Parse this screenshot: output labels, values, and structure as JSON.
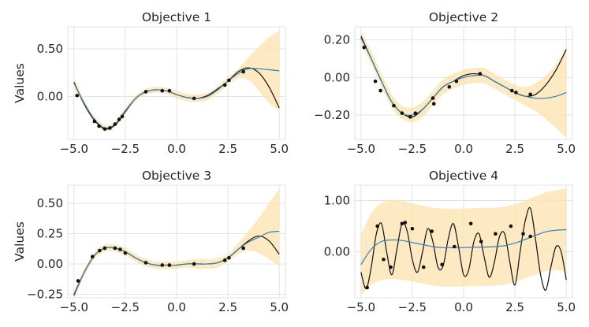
{
  "colors": {
    "band": "#fde3b1",
    "mean": "#3b7fb3",
    "truth": "#111111",
    "point": "#111111"
  },
  "chart_data": [
    {
      "type": "line",
      "title": "Objective 1",
      "xlabel": "",
      "ylabel": "Values",
      "xlim": [
        -5.3,
        5.3
      ],
      "ylim": [
        -0.45,
        0.73
      ],
      "xticks": [
        -5,
        -2.5,
        0,
        2.5,
        5
      ],
      "xtick_labels": [
        "−5.0",
        "−2.5",
        "0.0",
        "2.5",
        "5.0"
      ],
      "yticks": [
        0,
        0.5
      ],
      "ytick_labels": [
        "0.00",
        "0.50"
      ],
      "grid": true,
      "series": [
        {
          "name": "true objective",
          "x": [
            -5.0,
            -4.5,
            -4.0,
            -3.5,
            -3.0,
            -2.5,
            -2.0,
            -1.5,
            -1.0,
            -0.5,
            0.0,
            0.5,
            1.0,
            1.5,
            2.0,
            2.5,
            3.0,
            3.5,
            4.0,
            4.5,
            5.0
          ],
          "y": [
            0.15,
            -0.08,
            -0.25,
            -0.34,
            -0.3,
            -0.16,
            -0.02,
            0.05,
            0.07,
            0.06,
            0.02,
            -0.01,
            -0.02,
            0.01,
            0.08,
            0.16,
            0.26,
            0.3,
            0.25,
            0.1,
            -0.12
          ]
        },
        {
          "name": "posterior mean",
          "x": [
            -5.0,
            -4.5,
            -4.0,
            -3.5,
            -3.0,
            -2.5,
            -2.0,
            -1.5,
            -1.0,
            -0.5,
            0.0,
            0.5,
            1.0,
            1.5,
            2.0,
            2.5,
            3.0,
            3.5,
            4.0,
            4.5,
            5.0
          ],
          "y": [
            0.14,
            -0.07,
            -0.24,
            -0.33,
            -0.29,
            -0.15,
            -0.02,
            0.05,
            0.07,
            0.06,
            0.02,
            -0.01,
            -0.02,
            0.0,
            0.07,
            0.16,
            0.24,
            0.29,
            0.29,
            0.28,
            0.27
          ]
        },
        {
          "name": "confidence band",
          "x": [
            -5.0,
            -4.5,
            -4.0,
            -3.5,
            -3.0,
            -2.5,
            -2.0,
            -1.5,
            -1.0,
            -0.5,
            0.0,
            0.5,
            1.0,
            1.5,
            2.0,
            2.5,
            3.0,
            3.5,
            4.0,
            4.5,
            5.0
          ],
          "lower": [
            0.08,
            -0.1,
            -0.27,
            -0.36,
            -0.32,
            -0.18,
            -0.05,
            0.02,
            0.04,
            0.03,
            -0.02,
            -0.05,
            -0.06,
            -0.04,
            0.03,
            0.12,
            0.19,
            0.17,
            0.06,
            -0.07,
            -0.15
          ],
          "upper": [
            0.2,
            -0.04,
            -0.21,
            -0.3,
            -0.26,
            -0.12,
            0.01,
            0.08,
            0.1,
            0.09,
            0.06,
            0.03,
            0.02,
            0.04,
            0.11,
            0.2,
            0.29,
            0.41,
            0.52,
            0.62,
            0.69
          ]
        }
      ],
      "observations": {
        "x": [
          -4.85,
          -4.0,
          -3.78,
          -3.5,
          -3.25,
          -3.0,
          -2.8,
          -2.65,
          -1.5,
          -0.7,
          -0.35,
          0.85,
          2.35,
          2.55,
          3.25
        ],
        "y": [
          0.01,
          -0.26,
          -0.31,
          -0.34,
          -0.33,
          -0.29,
          -0.24,
          -0.21,
          0.05,
          0.06,
          0.06,
          -0.02,
          0.12,
          0.17,
          0.26
        ]
      }
    },
    {
      "type": "line",
      "title": "Objective 2",
      "xlabel": "",
      "ylabel": "",
      "xlim": [
        -5.3,
        5.3
      ],
      "ylim": [
        -0.33,
        0.27
      ],
      "xticks": [
        -5,
        -2.5,
        0,
        2.5,
        5
      ],
      "xtick_labels": [
        "−5.0",
        "−2.5",
        "0.0",
        "2.5",
        "5.0"
      ],
      "yticks": [
        -0.2,
        0,
        0.2
      ],
      "ytick_labels": [
        "−0.20",
        "0.00",
        "0.20"
      ],
      "grid": true,
      "series": [
        {
          "name": "true objective",
          "x": [
            -5.0,
            -4.5,
            -4.0,
            -3.5,
            -3.0,
            -2.5,
            -2.0,
            -1.5,
            -1.0,
            -0.5,
            0.0,
            0.5,
            1.0,
            1.5,
            2.0,
            2.5,
            3.0,
            3.5,
            4.0,
            4.5,
            5.0
          ],
          "y": [
            0.22,
            0.1,
            -0.02,
            -0.13,
            -0.19,
            -0.21,
            -0.17,
            -0.11,
            -0.05,
            -0.02,
            0.01,
            0.02,
            0.01,
            -0.02,
            -0.05,
            -0.08,
            -0.1,
            -0.09,
            -0.04,
            0.04,
            0.15
          ]
        },
        {
          "name": "posterior mean",
          "x": [
            -5.0,
            -4.5,
            -4.0,
            -3.5,
            -3.0,
            -2.5,
            -2.0,
            -1.5,
            -1.0,
            -0.5,
            0.0,
            0.5,
            1.0,
            1.5,
            2.0,
            2.5,
            3.0,
            3.5,
            4.0,
            4.5,
            5.0
          ],
          "y": [
            0.21,
            0.1,
            -0.02,
            -0.13,
            -0.19,
            -0.2,
            -0.17,
            -0.11,
            -0.05,
            -0.02,
            0.0,
            0.01,
            0.01,
            -0.02,
            -0.05,
            -0.08,
            -0.1,
            -0.11,
            -0.11,
            -0.1,
            -0.08
          ]
        },
        {
          "name": "confidence band",
          "x": [
            -5.0,
            -4.5,
            -4.0,
            -3.5,
            -3.0,
            -2.5,
            -2.0,
            -1.5,
            -1.0,
            -0.5,
            0.0,
            0.5,
            1.0,
            1.5,
            2.0,
            2.5,
            3.0,
            3.5,
            4.0,
            4.5,
            5.0
          ],
          "lower": [
            0.18,
            0.07,
            -0.05,
            -0.16,
            -0.22,
            -0.24,
            -0.21,
            -0.15,
            -0.09,
            -0.06,
            -0.04,
            -0.03,
            -0.03,
            -0.06,
            -0.09,
            -0.12,
            -0.15,
            -0.18,
            -0.22,
            -0.27,
            -0.32
          ],
          "upper": [
            0.25,
            0.14,
            0.02,
            -0.09,
            -0.15,
            -0.16,
            -0.13,
            -0.07,
            -0.01,
            0.02,
            0.04,
            0.05,
            0.05,
            0.02,
            -0.01,
            -0.04,
            -0.05,
            -0.03,
            0.01,
            0.07,
            0.16
          ]
        }
      ],
      "observations": {
        "x": [
          -4.85,
          -4.3,
          -4.05,
          -3.4,
          -3.0,
          -2.6,
          -2.35,
          -1.5,
          -1.45,
          -0.7,
          -0.35,
          0.8,
          2.35,
          2.55,
          3.25
        ],
        "y": [
          0.16,
          -0.02,
          -0.07,
          -0.15,
          -0.19,
          -0.21,
          -0.19,
          -0.11,
          -0.14,
          -0.05,
          -0.02,
          0.02,
          -0.07,
          -0.08,
          -0.09
        ]
      }
    },
    {
      "type": "line",
      "title": "Objective 3",
      "xlabel": "",
      "ylabel": "Values",
      "xlim": [
        -5.3,
        5.3
      ],
      "ylim": [
        -0.28,
        0.65
      ],
      "xticks": [
        -5,
        -2.5,
        0,
        2.5,
        5
      ],
      "xtick_labels": [
        "−5.0",
        "−2.5",
        "0.0",
        "2.5",
        "5.0"
      ],
      "yticks": [
        -0.25,
        0,
        0.25,
        0.5
      ],
      "ytick_labels": [
        "−0.25",
        "0.00",
        "0.25",
        "0.50"
      ],
      "grid": true,
      "series": [
        {
          "name": "true objective",
          "x": [
            -5.0,
            -4.5,
            -4.0,
            -3.5,
            -3.0,
            -2.5,
            -2.0,
            -1.5,
            -1.0,
            -0.5,
            0.0,
            0.5,
            1.0,
            1.5,
            2.0,
            2.5,
            3.0,
            3.5,
            4.0,
            4.5,
            5.0
          ],
          "y": [
            -0.26,
            -0.07,
            0.07,
            0.13,
            0.13,
            0.1,
            0.05,
            0.01,
            -0.01,
            -0.01,
            -0.01,
            0.0,
            0.0,
            0.0,
            0.01,
            0.05,
            0.12,
            0.19,
            0.23,
            0.19,
            0.08
          ]
        },
        {
          "name": "posterior mean",
          "x": [
            -5.0,
            -4.5,
            -4.0,
            -3.5,
            -3.0,
            -2.5,
            -2.0,
            -1.5,
            -1.0,
            -0.5,
            0.0,
            0.5,
            1.0,
            1.5,
            2.0,
            2.5,
            3.0,
            3.5,
            4.0,
            4.5,
            5.0
          ],
          "y": [
            -0.25,
            -0.07,
            0.07,
            0.13,
            0.13,
            0.1,
            0.05,
            0.01,
            -0.01,
            -0.01,
            -0.01,
            0.0,
            0.0,
            0.0,
            0.01,
            0.05,
            0.12,
            0.18,
            0.22,
            0.26,
            0.27
          ]
        },
        {
          "name": "confidence band",
          "x": [
            -5.0,
            -4.5,
            -4.0,
            -3.5,
            -3.0,
            -2.5,
            -2.0,
            -1.5,
            -1.0,
            -0.5,
            0.0,
            0.5,
            1.0,
            1.5,
            2.0,
            2.5,
            3.0,
            3.5,
            4.0,
            4.5,
            5.0
          ],
          "lower": [
            -0.28,
            -0.1,
            0.04,
            0.1,
            0.1,
            0.07,
            0.02,
            -0.02,
            -0.04,
            -0.04,
            -0.04,
            -0.03,
            -0.04,
            -0.04,
            -0.03,
            0.02,
            0.08,
            0.11,
            0.09,
            0.04,
            -0.02
          ],
          "upper": [
            -0.22,
            -0.04,
            0.1,
            0.16,
            0.16,
            0.13,
            0.08,
            0.04,
            0.02,
            0.02,
            0.02,
            0.03,
            0.04,
            0.04,
            0.05,
            0.08,
            0.17,
            0.27,
            0.38,
            0.5,
            0.62
          ]
        }
      ],
      "observations": {
        "x": [
          -4.8,
          -4.1,
          -3.75,
          -3.5,
          -3.0,
          -2.75,
          -2.5,
          -1.5,
          -0.7,
          -0.35,
          0.85,
          2.35,
          2.55,
          3.25
        ],
        "y": [
          -0.14,
          0.06,
          0.11,
          0.13,
          0.13,
          0.12,
          0.09,
          0.01,
          -0.01,
          -0.01,
          0.0,
          0.03,
          0.05,
          0.13
        ]
      }
    },
    {
      "type": "line",
      "title": "Objective 4",
      "xlabel": "",
      "ylabel": "",
      "xlim": [
        -5.3,
        5.3
      ],
      "ylim": [
        -0.9,
        1.3
      ],
      "xticks": [
        -5,
        -2.5,
        0,
        2.5,
        5
      ],
      "xtick_labels": [
        "−5.0",
        "−2.5",
        "0.0",
        "2.5",
        "5.0"
      ],
      "yticks": [
        0,
        1
      ],
      "ytick_labels": [
        "0.00",
        "1.00"
      ],
      "grid": true,
      "series": [
        {
          "name": "true objective",
          "x": [
            -5.0,
            -4.75,
            -4.5,
            -4.25,
            -4.0,
            -3.75,
            -3.5,
            -3.25,
            -3.0,
            -2.75,
            -2.5,
            -2.25,
            -2.0,
            -1.75,
            -1.5,
            -1.25,
            -1.0,
            -0.75,
            -0.5,
            -0.25,
            0.0,
            0.25,
            0.5,
            0.75,
            1.0,
            1.25,
            1.5,
            1.75,
            2.0,
            2.25,
            2.5,
            2.75,
            3.0,
            3.25,
            3.5,
            3.75,
            4.0,
            4.25,
            4.5,
            4.75,
            5.0
          ],
          "y": [
            -0.4,
            -0.72,
            -0.3,
            0.35,
            0.55,
            0.0,
            -0.45,
            0.05,
            0.55,
            0.4,
            -0.15,
            -0.4,
            0.0,
            0.45,
            0.2,
            -0.3,
            -0.28,
            0.25,
            0.55,
            0.1,
            -0.45,
            -0.35,
            0.2,
            0.35,
            -0.1,
            -0.5,
            -0.2,
            0.3,
            0.35,
            -0.2,
            -0.65,
            0.0,
            0.6,
            0.85,
            0.25,
            -0.45,
            -0.75,
            -0.3,
            0.1,
            0.0,
            -0.55
          ]
        },
        {
          "name": "posterior mean",
          "x": [
            -5.0,
            -4.5,
            -4.0,
            -3.5,
            -3.0,
            -2.5,
            -2.0,
            -1.5,
            -1.0,
            -0.5,
            0.0,
            0.5,
            1.0,
            1.5,
            2.0,
            2.5,
            3.0,
            3.5,
            4.0,
            4.5,
            5.0
          ],
          "y": [
            -0.25,
            0.05,
            0.2,
            0.23,
            0.22,
            0.18,
            0.14,
            0.1,
            0.08,
            0.08,
            0.08,
            0.09,
            0.09,
            0.1,
            0.12,
            0.17,
            0.24,
            0.32,
            0.39,
            0.42,
            0.43
          ]
        },
        {
          "name": "confidence band",
          "x": [
            -5.0,
            -4.5,
            -4.0,
            -3.5,
            -3.0,
            -2.5,
            -2.0,
            -1.5,
            -1.0,
            -0.5,
            0.0,
            0.5,
            1.0,
            1.5,
            2.0,
            2.5,
            3.0,
            3.5,
            4.0,
            4.5,
            5.0
          ],
          "lower": [
            -0.85,
            -0.65,
            -0.55,
            -0.53,
            -0.55,
            -0.58,
            -0.62,
            -0.66,
            -0.68,
            -0.68,
            -0.68,
            -0.67,
            -0.67,
            -0.66,
            -0.64,
            -0.59,
            -0.52,
            -0.45,
            -0.38,
            -0.36,
            -0.38
          ],
          "upper": [
            0.35,
            0.75,
            0.95,
            1.0,
            1.0,
            0.94,
            0.9,
            0.86,
            0.84,
            0.84,
            0.84,
            0.85,
            0.86,
            0.86,
            0.88,
            0.93,
            1.0,
            1.08,
            1.16,
            1.2,
            1.24
          ]
        }
      ],
      "observations": {
        "x": [
          -4.7,
          -4.2,
          -3.9,
          -3.55,
          -3.0,
          -2.85,
          -2.5,
          -1.95,
          -1.55,
          -1.05,
          -0.45,
          0.35,
          0.85,
          1.55,
          2.3,
          2.9,
          3.25
        ],
        "y": [
          -0.7,
          0.5,
          -0.15,
          -0.3,
          0.55,
          0.57,
          0.45,
          -0.3,
          0.4,
          -0.25,
          0.1,
          0.55,
          0.2,
          0.35,
          0.5,
          0.35,
          0.3
        ]
      }
    }
  ]
}
